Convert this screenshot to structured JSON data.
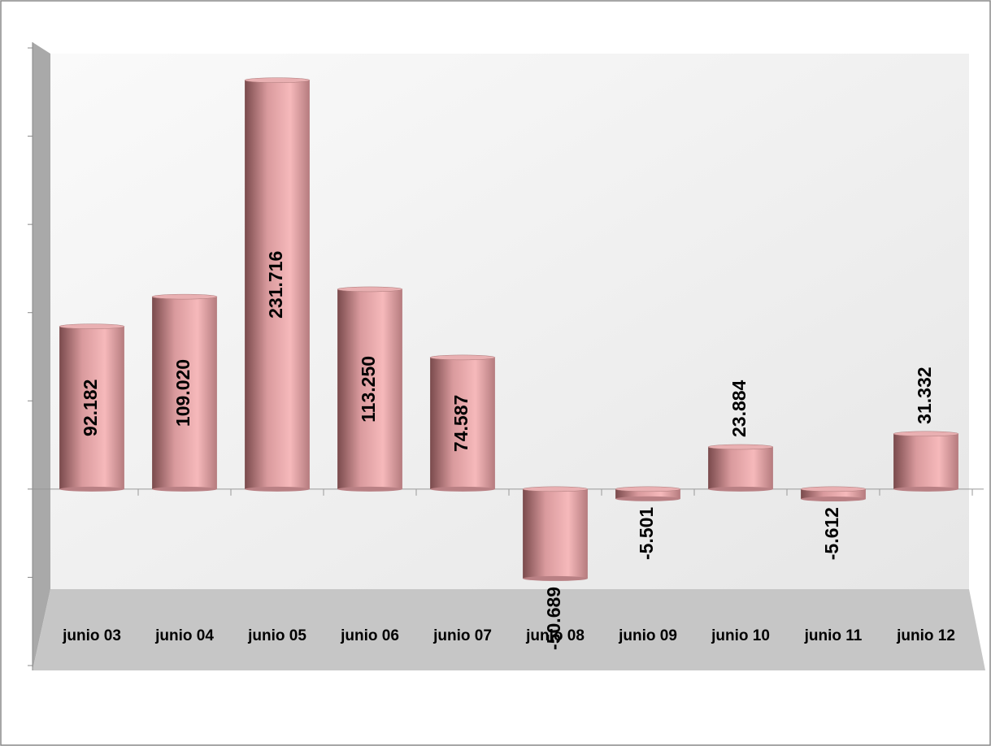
{
  "chart_data": {
    "type": "bar",
    "categories": [
      "junio 03",
      "junio 04",
      "junio 05",
      "junio 06",
      "junio 07",
      "junio 08",
      "junio 09",
      "junio 10",
      "junio 11",
      "junio 12"
    ],
    "values": [
      92.182,
      109.02,
      231.716,
      113.25,
      74.587,
      -50.689,
      -5.501,
      23.884,
      -5.612,
      31.332
    ],
    "value_labels": [
      "92.182",
      "109.020",
      "231.716",
      "113.250",
      "74.587",
      "-50.689",
      "-5.501",
      "23.884",
      "-5.612",
      "31.332"
    ],
    "color": "#e8a3a6",
    "ylim": [
      -100,
      250
    ],
    "yticks": [
      -100,
      -50,
      0,
      50,
      100,
      150,
      200,
      250
    ],
    "grid": false
  }
}
